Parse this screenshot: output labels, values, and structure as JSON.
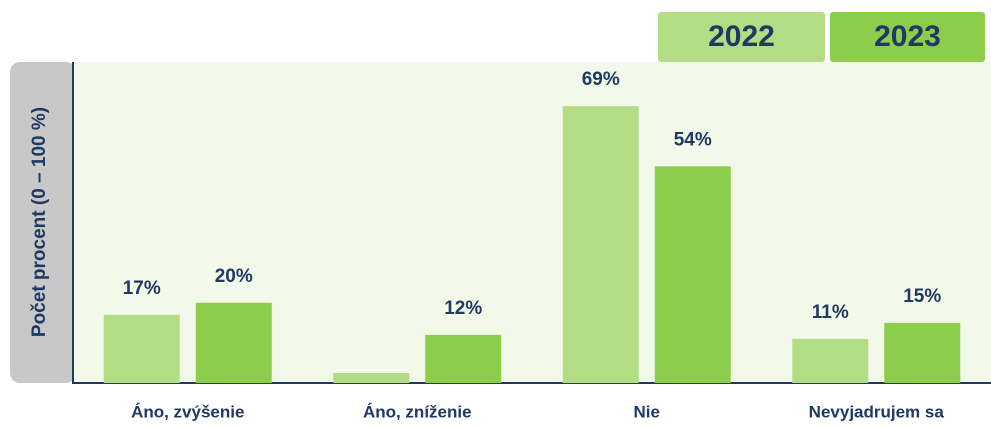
{
  "chart_data": {
    "type": "bar",
    "y_axis_label": "Počet procent  (0 – 100 %)",
    "categories": [
      "Áno, zvýšenie",
      "Áno, zníženie",
      "Nie",
      "Nevyjadrujem sa"
    ],
    "series": [
      {
        "name": "2022",
        "color": "#b3dd85",
        "values": [
          17,
          2.5,
          69,
          11
        ],
        "value_labels": [
          "17%",
          null,
          "69%",
          "11%"
        ]
      },
      {
        "name": "2023",
        "color": "#8cce4c",
        "values": [
          20,
          12,
          54,
          15
        ],
        "value_labels": [
          "20%",
          "12%",
          "54%",
          "15%"
        ]
      }
    ],
    "ylim": [
      0,
      80
    ],
    "legend": "top-right"
  }
}
